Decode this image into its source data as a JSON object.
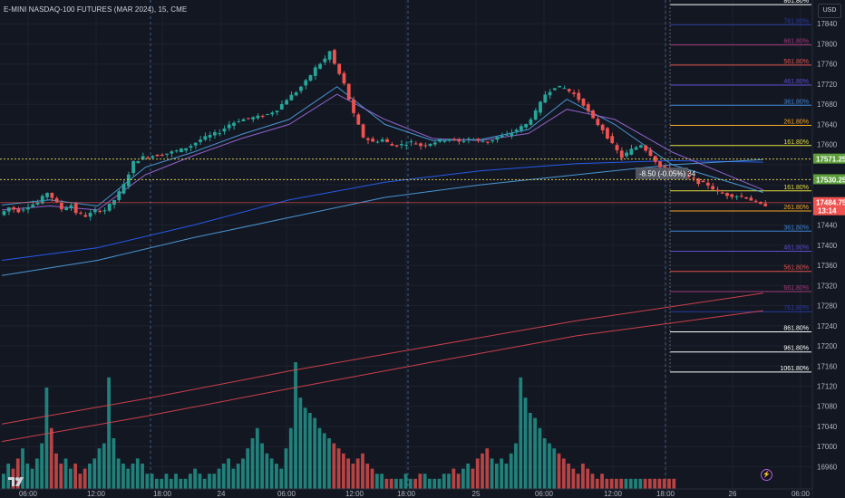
{
  "header": {
    "title": "E-MINI NASDAQ-100 FUTURES (MAR 2024), 15, CME"
  },
  "currency": "USD",
  "colors": {
    "background": "#131722",
    "grid": "#1e222d",
    "up": "#26a69a",
    "down": "#ef5350",
    "ma_blue": "#2962ff",
    "ma_light": "#4fa3e6",
    "ma_purple": "#9c6ade",
    "ma_red": "#e0454f",
    "session_line": "#3e5c86",
    "dotted_level": "#d4c74e"
  },
  "chart_data": {
    "type": "candlestick",
    "instrument": "E-MINI NASDAQ-100 FUTURES (MAR 2024)",
    "interval": "15",
    "exchange": "CME",
    "ylim": [
      16950,
      17880
    ],
    "y_ticks": [
      17840,
      17800,
      17760,
      17720,
      17680,
      17640,
      17600,
      17560,
      17520,
      17480,
      17440,
      17400,
      17360,
      17320,
      17280,
      17240,
      17200,
      17160,
      17120,
      17080,
      17040,
      17000,
      16960
    ],
    "x_ticks": [
      "06:00",
      "12:00",
      "18:00",
      "24",
      "06:00",
      "12:00",
      "18:00",
      "25",
      "06:00",
      "12:00",
      "18:00",
      "26",
      "06:00"
    ],
    "session_dividers": [
      "18:00",
      "18:00",
      "18:00"
    ],
    "price_points": [
      [
        0,
        17460
      ],
      [
        2,
        17475
      ],
      [
        4,
        17468
      ],
      [
        6,
        17478
      ],
      [
        8,
        17485
      ],
      [
        10,
        17505
      ],
      [
        11,
        17495
      ],
      [
        13,
        17472
      ],
      [
        15,
        17480
      ],
      [
        16,
        17465
      ],
      [
        18,
        17458
      ],
      [
        20,
        17468
      ],
      [
        22,
        17470
      ],
      [
        23,
        17480
      ],
      [
        24,
        17490
      ],
      [
        26,
        17520
      ],
      [
        28,
        17565
      ],
      [
        30,
        17575
      ],
      [
        32,
        17578
      ],
      [
        34,
        17580
      ],
      [
        36,
        17585
      ],
      [
        38,
        17590
      ],
      [
        40,
        17598
      ],
      [
        42,
        17610
      ],
      [
        44,
        17618
      ],
      [
        46,
        17625
      ],
      [
        48,
        17640
      ],
      [
        50,
        17648
      ],
      [
        52,
        17652
      ],
      [
        54,
        17655
      ],
      [
        56,
        17660
      ],
      [
        58,
        17670
      ],
      [
        60,
        17690
      ],
      [
        62,
        17705
      ],
      [
        64,
        17725
      ],
      [
        66,
        17752
      ],
      [
        68,
        17770
      ],
      [
        69,
        17785
      ],
      [
        70,
        17760
      ],
      [
        72,
        17720
      ],
      [
        74,
        17660
      ],
      [
        76,
        17615
      ],
      [
        78,
        17605
      ],
      [
        80,
        17610
      ],
      [
        82,
        17598
      ],
      [
        84,
        17600
      ],
      [
        86,
        17605
      ],
      [
        88,
        17598
      ],
      [
        90,
        17603
      ],
      [
        92,
        17608
      ],
      [
        94,
        17612
      ],
      [
        96,
        17605
      ],
      [
        98,
        17612
      ],
      [
        100,
        17608
      ],
      [
        102,
        17605
      ],
      [
        104,
        17615
      ],
      [
        106,
        17618
      ],
      [
        108,
        17630
      ],
      [
        110,
        17640
      ],
      [
        112,
        17665
      ],
      [
        114,
        17700
      ],
      [
        116,
        17715
      ],
      [
        118,
        17712
      ],
      [
        120,
        17700
      ],
      [
        122,
        17680
      ],
      [
        124,
        17650
      ],
      [
        126,
        17630
      ],
      [
        128,
        17600
      ],
      [
        130,
        17575
      ],
      [
        132,
        17590
      ],
      [
        134,
        17600
      ],
      [
        136,
        17580
      ],
      [
        138,
        17555
      ],
      [
        140,
        17548
      ],
      [
        142,
        17540
      ],
      [
        144,
        17535
      ],
      [
        146,
        17525
      ],
      [
        148,
        17520
      ],
      [
        150,
        17505
      ],
      [
        152,
        17500
      ],
      [
        154,
        17498
      ],
      [
        156,
        17495
      ],
      [
        158,
        17485
      ],
      [
        159,
        17480
      ]
    ],
    "ma_series": [
      {
        "name": "",
        "color": "#2962ff",
        "points": [
          [
            0,
            17370
          ],
          [
            20,
            17395
          ],
          [
            40,
            17440
          ],
          [
            60,
            17490
          ],
          [
            80,
            17525
          ],
          [
            100,
            17548
          ],
          [
            120,
            17562
          ],
          [
            140,
            17568
          ],
          [
            159,
            17565
          ]
        ]
      },
      {
        "name": "",
        "color": "#4fa3e6",
        "points": [
          [
            0,
            17340
          ],
          [
            20,
            17370
          ],
          [
            40,
            17415
          ],
          [
            60,
            17455
          ],
          [
            80,
            17495
          ],
          [
            100,
            17520
          ],
          [
            120,
            17540
          ],
          [
            140,
            17560
          ],
          [
            159,
            17570
          ]
        ]
      },
      {
        "name": "",
        "color": "#4fa3e6",
        "points": [
          [
            0,
            17480
          ],
          [
            10,
            17490
          ],
          [
            20,
            17478
          ],
          [
            30,
            17555
          ],
          [
            40,
            17585
          ],
          [
            50,
            17620
          ],
          [
            60,
            17650
          ],
          [
            70,
            17715
          ],
          [
            80,
            17640
          ],
          [
            90,
            17608
          ],
          [
            100,
            17610
          ],
          [
            110,
            17630
          ],
          [
            118,
            17690
          ],
          [
            128,
            17640
          ],
          [
            140,
            17560
          ],
          [
            159,
            17505
          ]
        ]
      },
      {
        "name": "",
        "color": "#9c6ade",
        "points": [
          [
            0,
            17470
          ],
          [
            10,
            17478
          ],
          [
            20,
            17470
          ],
          [
            30,
            17540
          ],
          [
            40,
            17578
          ],
          [
            50,
            17612
          ],
          [
            60,
            17640
          ],
          [
            70,
            17700
          ],
          [
            80,
            17650
          ],
          [
            90,
            17612
          ],
          [
            100,
            17608
          ],
          [
            110,
            17622
          ],
          [
            118,
            17670
          ],
          [
            128,
            17650
          ],
          [
            140,
            17585
          ],
          [
            159,
            17510
          ]
        ]
      },
      {
        "name": "",
        "color": "#e0454f",
        "points": [
          [
            0,
            17045
          ],
          [
            30,
            17095
          ],
          [
            60,
            17150
          ],
          [
            90,
            17200
          ],
          [
            120,
            17250
          ],
          [
            159,
            17305
          ]
        ]
      },
      {
        "name": "",
        "color": "#e0454f",
        "points": [
          [
            0,
            17010
          ],
          [
            30,
            17060
          ],
          [
            60,
            17115
          ],
          [
            90,
            17168
          ],
          [
            120,
            17220
          ],
          [
            159,
            17270
          ]
        ]
      }
    ],
    "volume": [
      3,
      5,
      4,
      6,
      8,
      5,
      4,
      6,
      9,
      20,
      12,
      7,
      5,
      6,
      4,
      5,
      3,
      4,
      5,
      6,
      8,
      9,
      22,
      10,
      6,
      5,
      4,
      5,
      6,
      5,
      3,
      3,
      2,
      2,
      3,
      2,
      3,
      2,
      2,
      3,
      4,
      3,
      2,
      3,
      3,
      4,
      5,
      6,
      4,
      5,
      6,
      8,
      10,
      12,
      9,
      7,
      6,
      5,
      4,
      8,
      12,
      25,
      18,
      16,
      15,
      14,
      12,
      11,
      10,
      9,
      8,
      7,
      6,
      5,
      6,
      7,
      5,
      4,
      3,
      3,
      2,
      2,
      2,
      2,
      3,
      2,
      2,
      3,
      3,
      2,
      2,
      2,
      3,
      3,
      4,
      3,
      4,
      5,
      4,
      6,
      7,
      8,
      6,
      5,
      6,
      5,
      7,
      9,
      22,
      18,
      15,
      14,
      12,
      10,
      9,
      8,
      7,
      6,
      5,
      4,
      3,
      5,
      4,
      3,
      2,
      3,
      2,
      2,
      2,
      2,
      2,
      2,
      2,
      2,
      2,
      2,
      2,
      2,
      2,
      2,
      2
    ],
    "horizontal_levels": [
      {
        "label": "17571.25",
        "value": 17571.25,
        "style": "dotted",
        "color": "#d4c74e",
        "badge": "#5d9e3b"
      },
      {
        "label": "17530.25",
        "value": 17530.25,
        "style": "dotted",
        "color": "#d4c74e",
        "badge": "#5d9e3b"
      },
      {
        "label": "17484.75",
        "value": 17484.75,
        "style": "solid",
        "color": "#ef5350",
        "badge": "#ef5350",
        "sub_label": "13:14"
      }
    ],
    "fib_levels": [
      {
        "label": "861.80%",
        "value": 17878,
        "color": "#ffffff"
      },
      {
        "label": "761.80%",
        "value": 17838,
        "color": "#2b3c9f"
      },
      {
        "label": "661.80%",
        "value": 17798,
        "color": "#a33a7b"
      },
      {
        "label": "561.80%",
        "value": 17758,
        "color": "#e2524c"
      },
      {
        "label": "461.80%",
        "value": 17718,
        "color": "#5a4fcf"
      },
      {
        "label": "361.80%",
        "value": 17678,
        "color": "#3f86d6"
      },
      {
        "label": "261.80%",
        "value": 17638,
        "color": "#f5a623"
      },
      {
        "label": "161.80%",
        "value": 17598,
        "color": "#e2dd3e"
      },
      {
        "label": "161.80%",
        "value": 17508,
        "color": "#e2dd3e"
      },
      {
        "label": "261.80%",
        "value": 17468,
        "color": "#f5a623"
      },
      {
        "label": "361.80%",
        "value": 17428,
        "color": "#3f86d6"
      },
      {
        "label": "461.80%",
        "value": 17388,
        "color": "#5a4fcf"
      },
      {
        "label": "561.80%",
        "value": 17348,
        "color": "#e2524c"
      },
      {
        "label": "661.80%",
        "value": 17308,
        "color": "#a33a7b"
      },
      {
        "label": "761.80%",
        "value": 17268,
        "color": "#2b3c9f"
      },
      {
        "label": "861.80%",
        "value": 17228,
        "color": "#ffffff"
      },
      {
        "label": "961.80%",
        "value": 17188,
        "color": "#ffffff"
      },
      {
        "label": "1061.80%",
        "value": 17148,
        "color": "#ffffff"
      }
    ],
    "measure_label": "-8.50 (-0.05%) 34"
  }
}
